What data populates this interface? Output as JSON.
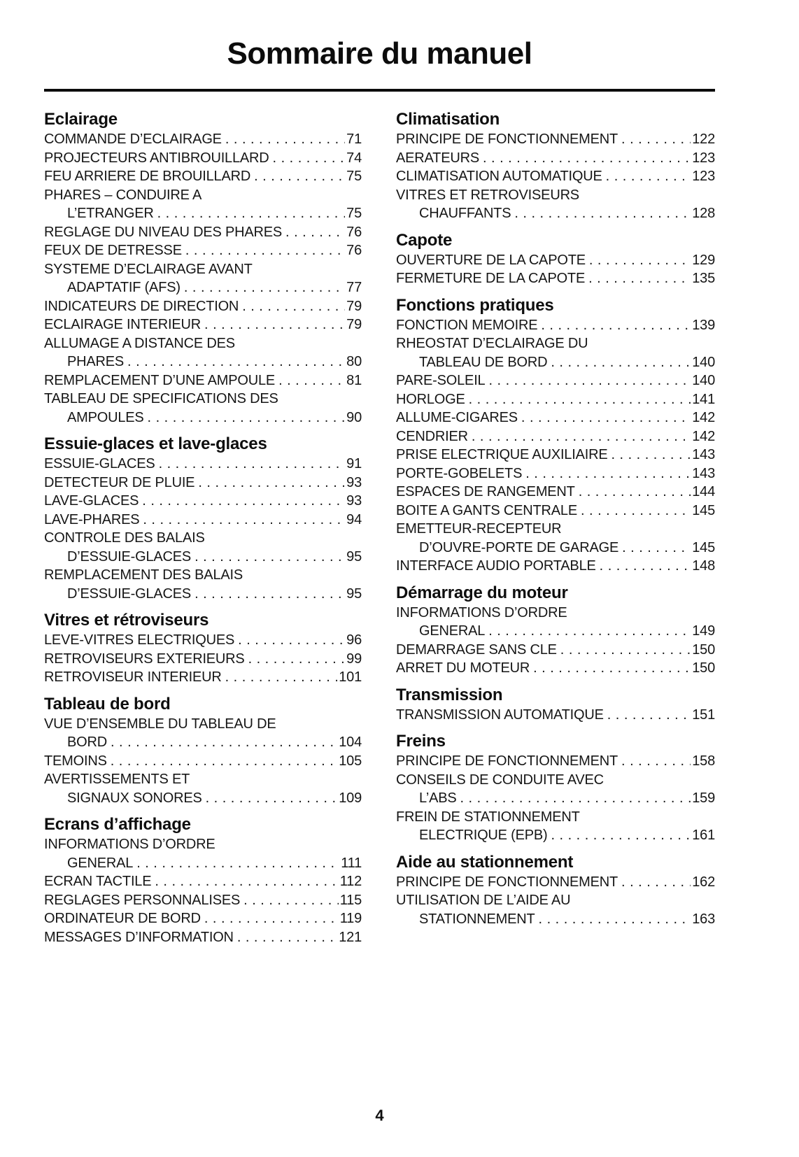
{
  "page_title": "Sommaire du manuel",
  "footer_page_number": "4",
  "columns": [
    {
      "sections": [
        {
          "heading": "Eclairage",
          "entries": [
            {
              "l1": "COMMANDE D’ECLAIRAGE",
              "page": "71"
            },
            {
              "l1": "PROJECTEURS ANTIBROUILLARD",
              "page": "74"
            },
            {
              "l1": "FEU ARRIERE DE BROUILLARD",
              "page": "75"
            },
            {
              "l1": "PHARES – CONDUIRE A",
              "l2": "L’ETRANGER",
              "page": "75"
            },
            {
              "l1": "REGLAGE DU NIVEAU DES PHARES",
              "page": "76"
            },
            {
              "l1": "FEUX DE DETRESSE",
              "page": "76"
            },
            {
              "l1": "SYSTEME D’ECLAIRAGE AVANT",
              "l2": "ADAPTATIF (AFS)",
              "page": "77"
            },
            {
              "l1": "INDICATEURS DE DIRECTION",
              "page": "79"
            },
            {
              "l1": "ECLAIRAGE INTERIEUR",
              "page": "79"
            },
            {
              "l1": "ALLUMAGE A DISTANCE DES",
              "l2": "PHARES",
              "page": "80"
            },
            {
              "l1": "REMPLACEMENT D’UNE AMPOULE",
              "page": "81"
            },
            {
              "l1": "TABLEAU DE SPECIFICATIONS DES",
              "l2": "AMPOULES",
              "page": "90"
            }
          ]
        },
        {
          "heading": "Essuie-glaces et lave-glaces",
          "entries": [
            {
              "l1": "ESSUIE-GLACES",
              "page": "91"
            },
            {
              "l1": "DETECTEUR DE PLUIE",
              "page": "93"
            },
            {
              "l1": "LAVE-GLACES",
              "page": "93"
            },
            {
              "l1": "LAVE-PHARES",
              "page": "94"
            },
            {
              "l1": "CONTROLE DES BALAIS",
              "l2": "D’ESSUIE-GLACES",
              "page": "95"
            },
            {
              "l1": "REMPLACEMENT DES BALAIS",
              "l2": "D’ESSUIE-GLACES",
              "page": "95"
            }
          ]
        },
        {
          "heading": "Vitres et rétroviseurs",
          "entries": [
            {
              "l1": "LEVE-VITRES ELECTRIQUES",
              "page": "96"
            },
            {
              "l1": "RETROVISEURS EXTERIEURS",
              "page": "99"
            },
            {
              "l1": "RETROVISEUR INTERIEUR",
              "page": "101"
            }
          ]
        },
        {
          "heading": "Tableau de bord",
          "entries": [
            {
              "l1": "VUE D’ENSEMBLE DU TABLEAU DE",
              "l2": "BORD",
              "page": "104"
            },
            {
              "l1": "TEMOINS",
              "page": "105"
            },
            {
              "l1": "AVERTISSEMENTS ET",
              "l2": "SIGNAUX SONORES",
              "page": "109"
            }
          ]
        },
        {
          "heading": "Ecrans d’affichage",
          "entries": [
            {
              "l1": "INFORMATIONS D’ORDRE",
              "l2": "GENERAL",
              "page": "111"
            },
            {
              "l1": "ECRAN TACTILE",
              "page": "112"
            },
            {
              "l1": "REGLAGES PERSONNALISES",
              "page": "115"
            },
            {
              "l1": "ORDINATEUR DE BORD",
              "page": "119"
            },
            {
              "l1": "MESSAGES D’INFORMATION",
              "page": "121"
            }
          ]
        }
      ]
    },
    {
      "sections": [
        {
          "heading": "Climatisation",
          "entries": [
            {
              "l1": "PRINCIPE DE FONCTIONNEMENT",
              "page": "122"
            },
            {
              "l1": "AERATEURS",
              "page": "123"
            },
            {
              "l1": "CLIMATISATION AUTOMATIQUE",
              "page": "123"
            },
            {
              "l1": "VITRES ET RETROVISEURS",
              "l2": "CHAUFFANTS",
              "page": "128"
            }
          ]
        },
        {
          "heading": "Capote",
          "entries": [
            {
              "l1": "OUVERTURE DE LA CAPOTE",
              "page": "129"
            },
            {
              "l1": "FERMETURE DE LA CAPOTE",
              "page": "135"
            }
          ]
        },
        {
          "heading": "Fonctions pratiques",
          "entries": [
            {
              "l1": "FONCTION MEMOIRE",
              "page": "139"
            },
            {
              "l1": "RHEOSTAT D’ECLAIRAGE DU",
              "l2": "TABLEAU DE BORD",
              "page": "140"
            },
            {
              "l1": "PARE-SOLEIL",
              "page": "140"
            },
            {
              "l1": "HORLOGE",
              "page": "141"
            },
            {
              "l1": "ALLUME-CIGARES",
              "page": "142"
            },
            {
              "l1": "CENDRIER",
              "page": "142"
            },
            {
              "l1": "PRISE ELECTRIQUE AUXILIAIRE",
              "page": "143"
            },
            {
              "l1": "PORTE-GOBELETS",
              "page": "143"
            },
            {
              "l1": "ESPACES DE RANGEMENT",
              "page": "144"
            },
            {
              "l1": "BOITE A GANTS CENTRALE",
              "page": "145"
            },
            {
              "l1": "EMETTEUR-RECEPTEUR",
              "l2": "D’OUVRE-PORTE DE GARAGE",
              "page": "145"
            },
            {
              "l1": "INTERFACE AUDIO PORTABLE",
              "page": "148"
            }
          ]
        },
        {
          "heading": "Démarrage du moteur",
          "entries": [
            {
              "l1": "INFORMATIONS D’ORDRE",
              "l2": "GENERAL",
              "page": "149"
            },
            {
              "l1": "DEMARRAGE SANS CLE",
              "page": "150"
            },
            {
              "l1": "ARRET DU MOTEUR",
              "page": "150"
            }
          ]
        },
        {
          "heading": "Transmission",
          "entries": [
            {
              "l1": "TRANSMISSION AUTOMATIQUE",
              "page": "151"
            }
          ]
        },
        {
          "heading": "Freins",
          "entries": [
            {
              "l1": "PRINCIPE DE FONCTIONNEMENT",
              "page": "158"
            },
            {
              "l1": "CONSEILS DE CONDUITE AVEC",
              "l2": "L’ABS",
              "page": "159"
            },
            {
              "l1": "FREIN DE STATIONNEMENT",
              "l2": "ELECTRIQUE (EPB)",
              "page": "161"
            }
          ]
        },
        {
          "heading": "Aide au stationnement",
          "entries": [
            {
              "l1": "PRINCIPE DE FONCTIONNEMENT",
              "page": "162"
            },
            {
              "l1": "UTILISATION DE L’AIDE AU",
              "l2": "STATIONNEMENT",
              "page": "163"
            }
          ]
        }
      ]
    }
  ]
}
